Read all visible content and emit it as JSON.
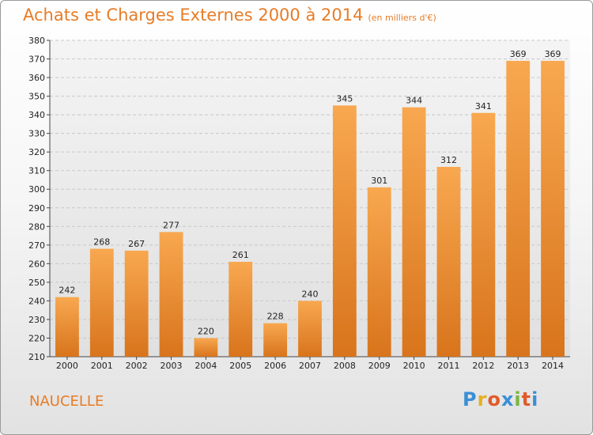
{
  "header": {
    "title": "Achats et Charges Externes 2000 à 2014",
    "subtitle": "(en milliers d'€)"
  },
  "footer": {
    "commune": "NAUCELLE",
    "logo": [
      "P",
      "r",
      "o",
      "x",
      "i",
      "t",
      "i"
    ],
    "logo_colors": [
      "#3a8fd6",
      "#e8b020",
      "#e05a2a",
      "#3a8fd6",
      "#7ab640",
      "#e05a2a",
      "#3a8fd6"
    ]
  },
  "chart_data": {
    "type": "bar",
    "title": "Achats et Charges Externes 2000 à 2014",
    "subtitle": "(en milliers d'€)",
    "xlabel": "",
    "ylabel": "",
    "categories": [
      "2000",
      "2001",
      "2002",
      "2003",
      "2004",
      "2005",
      "2006",
      "2007",
      "2008",
      "2009",
      "2010",
      "2011",
      "2012",
      "2013",
      "2014"
    ],
    "values": [
      242,
      268,
      267,
      277,
      220,
      261,
      228,
      240,
      345,
      301,
      344,
      312,
      341,
      369,
      369
    ],
    "ylim": [
      210,
      380
    ],
    "yticks": [
      210,
      220,
      230,
      240,
      250,
      260,
      270,
      280,
      290,
      300,
      310,
      320,
      330,
      340,
      350,
      360,
      370,
      380
    ],
    "grid": true,
    "bar_color": "#f0923a"
  }
}
